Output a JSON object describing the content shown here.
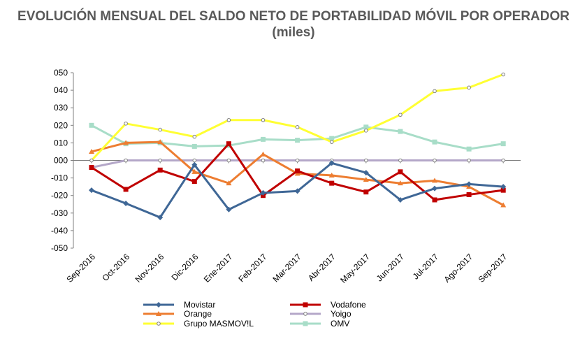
{
  "chart_data": {
    "type": "line",
    "title": "EVOLUCIÓN MENSUAL DEL SALDO NETO DE PORTABILIDAD MÓVIL POR OPERADOR (miles)",
    "categories": [
      "Sep-2016",
      "Oct-2016",
      "Nov-2016",
      "Dic-2016",
      "Ene-2017",
      "Feb-2017",
      "Mar-2017",
      "Abr-2017",
      "May-2017",
      "Jun-2017",
      "Jul-2017",
      "Ago-2017",
      "Sep-2017"
    ],
    "y_ticks": [
      "050",
      "040",
      "030",
      "020",
      "010",
      "000",
      "-010",
      "-020",
      "-030",
      "-040",
      "-050"
    ],
    "ylim": [
      -50,
      50
    ],
    "grid": false,
    "legend": "bottom",
    "series": [
      {
        "name": "Movistar",
        "color": "#3F6796",
        "marker": "diamond",
        "values": [
          -17,
          -24.5,
          -32.5,
          -2.5,
          -28,
          -18.5,
          -17.5,
          -1.5,
          -7,
          -22.5,
          -16,
          -13.5,
          -15
        ]
      },
      {
        "name": "Vodafone",
        "color": "#C00000",
        "marker": "square",
        "values": [
          -4,
          -16.5,
          -5.5,
          -12,
          9.5,
          -20,
          -6,
          -13,
          -18,
          -6.5,
          -22.5,
          -19.5,
          -17
        ]
      },
      {
        "name": "Orange",
        "color": "#ED7D31",
        "marker": "triangle",
        "values": [
          5,
          10,
          10.5,
          -6.5,
          -13,
          3.5,
          -7.5,
          -8.5,
          -11,
          -13,
          -11.5,
          -15,
          -25.5
        ]
      },
      {
        "name": "Yoigo",
        "color": "#B4A7C8",
        "marker": "circle",
        "values": [
          -4,
          0,
          0,
          0,
          0,
          0,
          0,
          0,
          0,
          0,
          0,
          0,
          0
        ]
      },
      {
        "name": "Grupo MASMOV!L",
        "color": "#FFFF33",
        "marker": "circle",
        "values": [
          0,
          21,
          17.5,
          13.5,
          23,
          23,
          19,
          10.5,
          17,
          26,
          39.5,
          41.5,
          49
        ]
      },
      {
        "name": "OMV",
        "color": "#A8DDC8",
        "marker": "square",
        "values": [
          20,
          9.5,
          10,
          8,
          8.5,
          12,
          11.5,
          12.5,
          19,
          16.5,
          10.5,
          6.5,
          9.5
        ]
      }
    ]
  }
}
